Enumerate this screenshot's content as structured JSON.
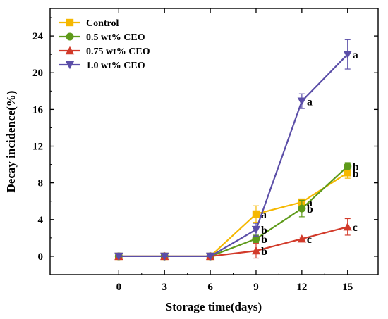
{
  "chart_data": {
    "type": "line",
    "title": "",
    "xlabel": "Storage time(days)",
    "ylabel": "Decay incidence(%)",
    "x": [
      0,
      3,
      6,
      9,
      12,
      15
    ],
    "xticks": [
      "0",
      "3",
      "6",
      "9",
      "12",
      "15"
    ],
    "xlim": [
      -4.5,
      17
    ],
    "yticks": [
      "0",
      "4",
      "8",
      "12",
      "16",
      "20",
      "24"
    ],
    "ylim": [
      -2,
      27
    ],
    "grid": false,
    "legend_position": "top-left",
    "series": [
      {
        "name": "Control",
        "color": "#F5B800",
        "marker": "square",
        "values": [
          0,
          0,
          0,
          4.6,
          5.9,
          9.1
        ],
        "errors": [
          0,
          0,
          0,
          0.9,
          0.3,
          0.6
        ],
        "labels": [
          "",
          "",
          "",
          "a",
          "a",
          "b"
        ]
      },
      {
        "name": "0.5 wt% CEO",
        "color": "#5E9A1A",
        "marker": "circle",
        "values": [
          0,
          0,
          0,
          1.9,
          5.2,
          9.8
        ],
        "errors": [
          0,
          0,
          0,
          0.4,
          0.9,
          0.4
        ],
        "labels": [
          "",
          "",
          "",
          "b",
          "b",
          "b"
        ]
      },
      {
        "name": "0.75 wt% CEO",
        "color": "#D23A2A",
        "marker": "triangle-up",
        "values": [
          0,
          0,
          0,
          0.6,
          1.9,
          3.2
        ],
        "errors": [
          0,
          0,
          0,
          0.8,
          0.2,
          0.9
        ],
        "labels": [
          "",
          "",
          "",
          "b",
          "c",
          "c"
        ]
      },
      {
        "name": "1.0 wt% CEO",
        "color": "#5B4EA8",
        "marker": "triangle-down",
        "values": [
          0,
          0,
          0,
          2.9,
          16.9,
          22.0
        ],
        "errors": [
          0,
          0,
          0,
          0.7,
          0.8,
          1.6
        ],
        "labels": [
          "",
          "",
          "",
          "b",
          "a",
          "a"
        ]
      }
    ]
  }
}
